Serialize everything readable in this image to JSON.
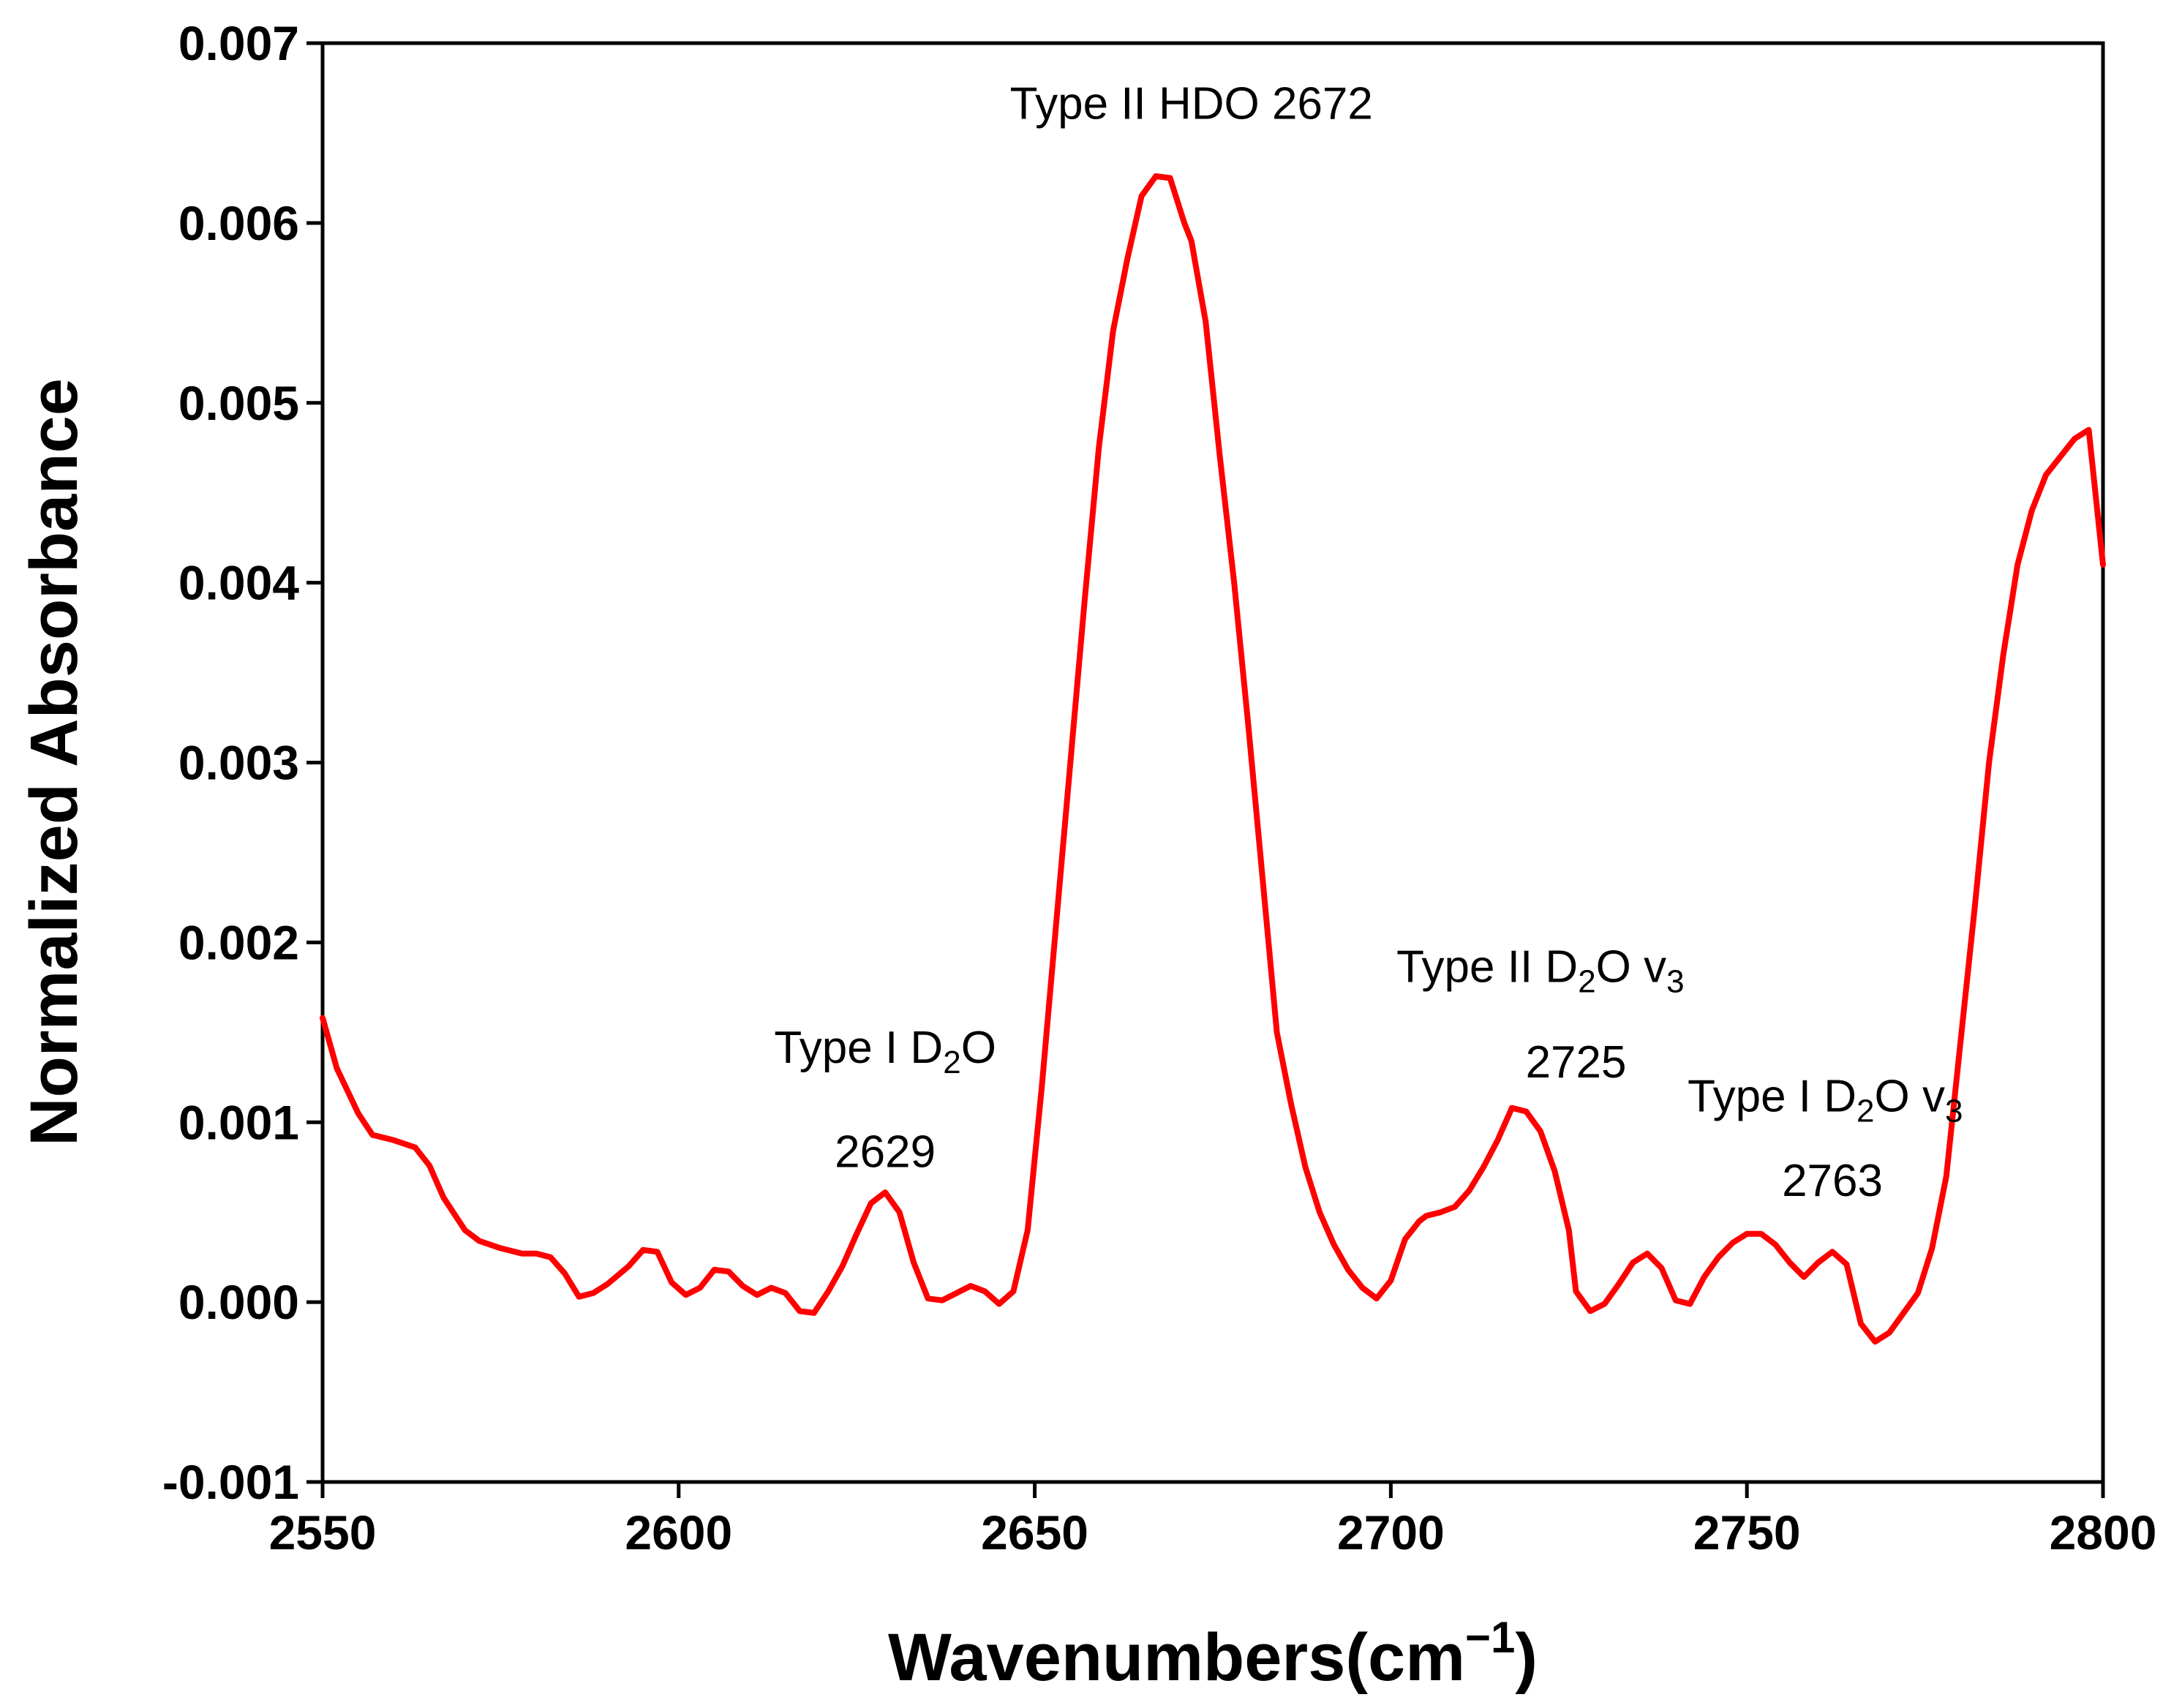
{
  "chart_data": {
    "type": "line",
    "xlabel": "Wavenumbers(cm",
    "xlabel_sup": "−1",
    "xlabel_end": ")",
    "ylabel": "Normalized Absorbance",
    "xlim": [
      2550,
      2800
    ],
    "ylim": [
      -0.001,
      0.007
    ],
    "xticks": [
      2550,
      2600,
      2650,
      2700,
      2750,
      2800
    ],
    "xtick_labels": [
      "2550",
      "2600",
      "2650",
      "2700",
      "2750",
      "2800"
    ],
    "yticks": [
      -0.001,
      0.0,
      0.001,
      0.002,
      0.003,
      0.004,
      0.005,
      0.006,
      0.007
    ],
    "ytick_labels": [
      "-0.001",
      "0.000",
      "0.001",
      "0.002",
      "0.003",
      "0.004",
      "0.005",
      "0.006",
      "0.007"
    ],
    "grid": false,
    "series": [
      {
        "name": "spectrum",
        "color": "#ff0000",
        "x": [
          2550,
          2552,
          2555,
          2557,
          2560,
          2563,
          2565,
          2567,
          2570,
          2572,
          2575,
          2578,
          2580,
          2582,
          2584,
          2586,
          2588,
          2590,
          2593,
          2595,
          2597,
          2599,
          2601,
          2603,
          2605,
          2607,
          2609,
          2611,
          2613,
          2615,
          2617,
          2619,
          2621,
          2623,
          2625,
          2627,
          2629,
          2631,
          2633,
          2635,
          2637,
          2639,
          2641,
          2643,
          2645,
          2647,
          2649,
          2651,
          2653,
          2655,
          2657,
          2659,
          2661,
          2663,
          2665,
          2667,
          2669,
          2671,
          2672,
          2674,
          2676,
          2678,
          2680,
          2682,
          2684,
          2686,
          2688,
          2690,
          2692,
          2694,
          2696,
          2698,
          2700,
          2702,
          2704,
          2705,
          2707,
          2709,
          2711,
          2713,
          2715,
          2717,
          2719,
          2721,
          2723,
          2725,
          2726,
          2728,
          2730,
          2732,
          2734,
          2736,
          2738,
          2740,
          2742,
          2744,
          2746,
          2748,
          2750,
          2752,
          2754,
          2756,
          2758,
          2760,
          2762,
          2764,
          2766,
          2768,
          2770,
          2772,
          2774,
          2776,
          2778,
          2780,
          2782,
          2784,
          2786,
          2788,
          2790,
          2792,
          2794,
          2796,
          2798,
          2800
        ],
        "y": [
          0.00158,
          0.0013,
          0.00105,
          0.00093,
          0.0009,
          0.00086,
          0.00076,
          0.00058,
          0.0004,
          0.00034,
          0.0003,
          0.00027,
          0.00027,
          0.00025,
          0.00016,
          3e-05,
          5e-05,
          0.0001,
          0.0002,
          0.00029,
          0.00028,
          0.00011,
          4e-05,
          8e-05,
          0.00018,
          0.00017,
          9e-05,
          4e-05,
          8e-05,
          5e-05,
          -5e-05,
          -6e-05,
          6e-05,
          0.0002,
          0.00038,
          0.00055,
          0.00061,
          0.0005,
          0.00022,
          2e-05,
          1e-05,
          5e-05,
          9e-05,
          6e-05,
          -1e-05,
          6e-05,
          0.0004,
          0.0012,
          0.0021,
          0.003,
          0.0039,
          0.00475,
          0.0054,
          0.0058,
          0.00615,
          0.00626,
          0.00625,
          0.006,
          0.0059,
          0.00545,
          0.0047,
          0.004,
          0.0032,
          0.00235,
          0.0015,
          0.0011,
          0.00075,
          0.0005,
          0.00032,
          0.00018,
          8e-05,
          2e-05,
          0.00012,
          0.00035,
          0.00045,
          0.00048,
          0.0005,
          0.00053,
          0.00062,
          0.00075,
          0.0009,
          0.00108,
          0.00106,
          0.00095,
          0.00073,
          0.0004,
          6e-05,
          -5e-05,
          -1e-05,
          0.0001,
          0.00022,
          0.00027,
          0.00019,
          1e-05,
          -1e-05,
          0.00014,
          0.00025,
          0.00033,
          0.00038,
          0.00038,
          0.00032,
          0.00022,
          0.00014,
          0.00022,
          0.00028,
          0.00021,
          -0.00012,
          -0.00022,
          -0.00017,
          -6e-05,
          5e-05,
          0.0003,
          0.0007,
          0.00145,
          0.0022,
          0.003,
          0.0036,
          0.0041,
          0.0044,
          0.0046,
          0.0047,
          0.0048,
          0.00485,
          0.0041
        ]
      }
    ],
    "annotations": [
      {
        "text": "Type II HDO 2672",
        "x": 2672,
        "y": 0.00658
      },
      {
        "text_main": "Type I D",
        "text_sub": "2",
        "text_end": "O",
        "x": 2629,
        "y": 0.00133
      },
      {
        "text": "2629",
        "x": 2629,
        "y": 0.00075
      },
      {
        "text_main": "Type II D",
        "text_sub": "2",
        "text_mid": "O v",
        "text_sub2": "3",
        "x": 2721,
        "y": 0.00178
      },
      {
        "text": "2725",
        "x": 2726,
        "y": 0.00125
      },
      {
        "text_main": "Type I D",
        "text_sub": "2",
        "text_mid": "O v",
        "text_sub2": "3",
        "x": 2761,
        "y": 0.00106
      },
      {
        "text": "2763",
        "x": 2762,
        "y": 0.00059
      }
    ]
  }
}
